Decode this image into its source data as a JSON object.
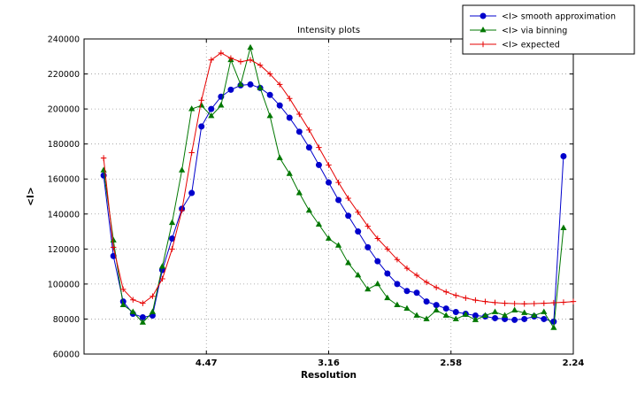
{
  "figure": {
    "background": "#ffffff"
  },
  "chart_data": {
    "type": "line",
    "title": "Intensity plots",
    "xlabel": "Resolution",
    "ylabel": "<I>",
    "grid": true,
    "legend_position": "top-right outside axes",
    "x_axis": {
      "note": "axis linear in 1/d^2; tick labels are resolution d",
      "range": [
        0.0,
        0.2
      ],
      "ticks": [
        0.05,
        0.1,
        0.15,
        0.2
      ],
      "tick_labels": [
        "4.47",
        "3.16",
        "2.58",
        "2.24"
      ]
    },
    "y_axis": {
      "range": [
        60000,
        240000
      ],
      "ticks": [
        60000,
        80000,
        100000,
        120000,
        140000,
        160000,
        180000,
        200000,
        220000,
        240000
      ],
      "tick_labels": [
        "60000",
        "80000",
        "100000",
        "120000",
        "140000",
        "160000",
        "180000",
        "200000",
        "220000",
        "240000"
      ]
    },
    "style": {
      "grid_color": "#999999",
      "axis_color": "#000000",
      "background": "#ffffff"
    },
    "series": [
      {
        "name": "<I> smooth approximation",
        "color": "#0000cc",
        "marker": "circle",
        "x": [
          0.008,
          0.012,
          0.016,
          0.02,
          0.024,
          0.028,
          0.032,
          0.036,
          0.04,
          0.044,
          0.048,
          0.052,
          0.056,
          0.06,
          0.064,
          0.068,
          0.072,
          0.076,
          0.08,
          0.084,
          0.088,
          0.092,
          0.096,
          0.1,
          0.104,
          0.108,
          0.112,
          0.116,
          0.12,
          0.124,
          0.128,
          0.132,
          0.136,
          0.14,
          0.144,
          0.148,
          0.152,
          0.156,
          0.16,
          0.164,
          0.168,
          0.172,
          0.176,
          0.18,
          0.184,
          0.188,
          0.192,
          0.196
        ],
        "y": [
          162000,
          116000,
          90000,
          83000,
          81000,
          82000,
          108000,
          126000,
          143000,
          152000,
          190000,
          200000,
          207000,
          211000,
          213500,
          214000,
          212000,
          208000,
          202000,
          195000,
          187000,
          178000,
          168000,
          158000,
          148000,
          139000,
          130000,
          121000,
          113000,
          106000,
          100000,
          96000,
          95000,
          90000,
          88000,
          86000,
          84000,
          83000,
          82000,
          81500,
          80500,
          80000,
          79500,
          80000,
          81500,
          80000,
          78500,
          173000
        ]
      },
      {
        "name": "<I> via binning",
        "color": "#007700",
        "marker": "triangle",
        "x": [
          0.008,
          0.012,
          0.016,
          0.02,
          0.024,
          0.028,
          0.032,
          0.036,
          0.04,
          0.044,
          0.048,
          0.052,
          0.056,
          0.06,
          0.064,
          0.068,
          0.072,
          0.076,
          0.08,
          0.084,
          0.088,
          0.092,
          0.096,
          0.1,
          0.104,
          0.108,
          0.112,
          0.116,
          0.12,
          0.124,
          0.128,
          0.132,
          0.136,
          0.14,
          0.144,
          0.148,
          0.152,
          0.156,
          0.16,
          0.164,
          0.168,
          0.172,
          0.176,
          0.18,
          0.184,
          0.188,
          0.192,
          0.196
        ],
        "y": [
          165000,
          125000,
          88000,
          84000,
          78000,
          84000,
          110000,
          135000,
          165000,
          200000,
          202000,
          196000,
          202000,
          228000,
          214000,
          235000,
          212000,
          196000,
          172000,
          163000,
          152000,
          142000,
          134000,
          126000,
          122000,
          112000,
          105000,
          97000,
          100000,
          92000,
          88000,
          86000,
          82000,
          80000,
          85000,
          82000,
          80000,
          82500,
          79500,
          82000,
          84000,
          82000,
          85000,
          83500,
          82000,
          84000,
          75000,
          132000
        ]
      },
      {
        "name": "<I> expected",
        "color": "#e60000",
        "marker": "plus",
        "x": [
          0.008,
          0.012,
          0.016,
          0.02,
          0.024,
          0.028,
          0.032,
          0.036,
          0.04,
          0.044,
          0.048,
          0.052,
          0.056,
          0.06,
          0.064,
          0.068,
          0.072,
          0.076,
          0.08,
          0.084,
          0.088,
          0.092,
          0.096,
          0.1,
          0.104,
          0.108,
          0.112,
          0.116,
          0.12,
          0.124,
          0.128,
          0.132,
          0.136,
          0.14,
          0.144,
          0.148,
          0.152,
          0.156,
          0.16,
          0.164,
          0.168,
          0.172,
          0.176,
          0.18,
          0.184,
          0.188,
          0.192,
          0.196,
          0.2
        ],
        "y": [
          172000,
          121000,
          97000,
          91000,
          89000,
          93000,
          103000,
          120000,
          142000,
          175000,
          205000,
          228000,
          232000,
          229000,
          227000,
          228000,
          225000,
          220000,
          214000,
          206000,
          197000,
          188000,
          178000,
          168000,
          158000,
          149000,
          141000,
          133000,
          126000,
          120000,
          114000,
          109000,
          105000,
          101000,
          98000,
          95500,
          93500,
          92000,
          90800,
          90000,
          89400,
          89000,
          88800,
          88700,
          88800,
          89000,
          89300,
          89600,
          90000
        ]
      }
    ]
  }
}
